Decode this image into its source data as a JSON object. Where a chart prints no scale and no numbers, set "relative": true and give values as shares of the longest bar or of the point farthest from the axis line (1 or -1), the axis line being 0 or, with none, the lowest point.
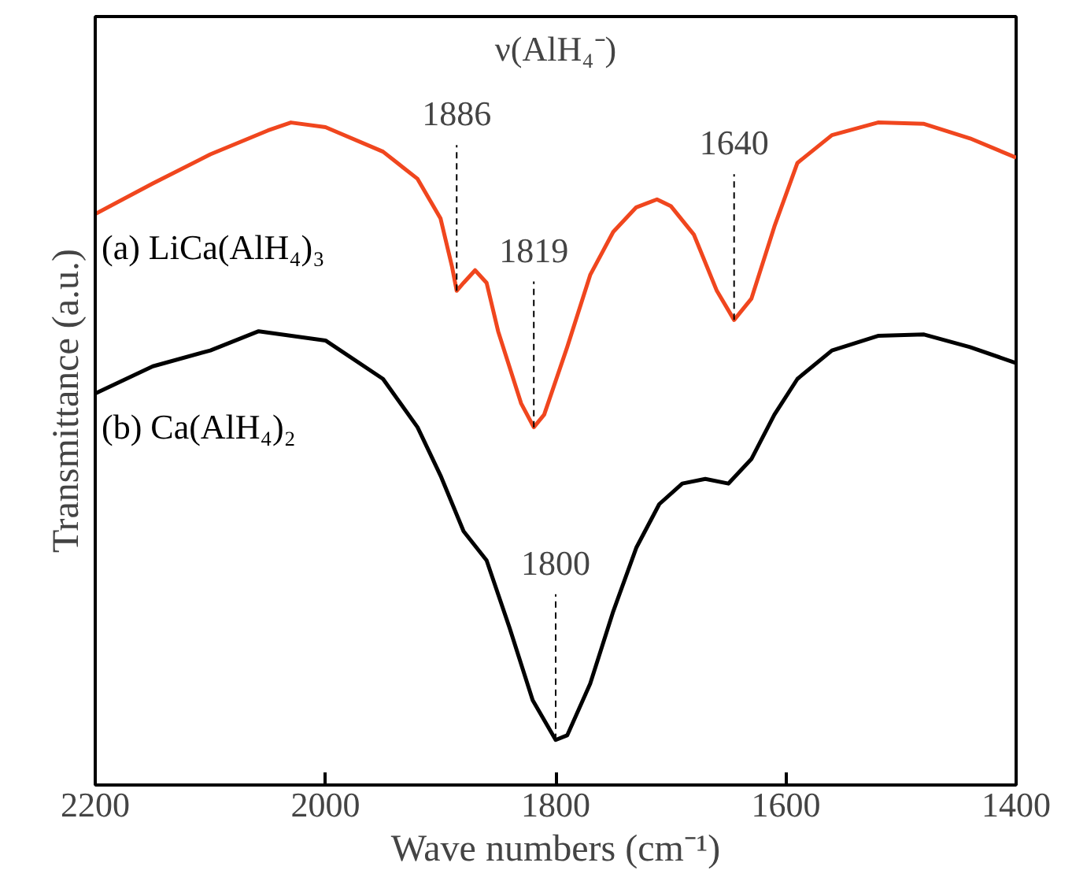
{
  "chart_data": {
    "type": "line",
    "relative": true,
    "xlabel": "Wave numbers (cm⁻¹)",
    "ylabel": "Transmittance (a.u.)",
    "xlim": [
      2200,
      1400
    ],
    "xticks": [
      2200,
      2000,
      1800,
      1600,
      1400
    ],
    "tick_labels": "x",
    "grid": false,
    "series": [
      {
        "name": "(a) LiCa(AlH₄)₃",
        "color": "#f0461e",
        "x": [
          2200,
          2150,
          2100,
          2050,
          2030,
          2000,
          1950,
          1920,
          1900,
          1890,
          1886,
          1880,
          1870,
          1860,
          1850,
          1830,
          1819,
          1810,
          1790,
          1770,
          1750,
          1730,
          1712,
          1700,
          1680,
          1660,
          1645,
          1630,
          1610,
          1590,
          1560,
          1520,
          1480,
          1440,
          1400
        ],
        "values": [
          0.862,
          0.908,
          0.952,
          0.988,
          1.0,
          0.993,
          0.956,
          0.915,
          0.855,
          0.782,
          0.746,
          0.758,
          0.777,
          0.758,
          0.685,
          0.576,
          0.54,
          0.559,
          0.661,
          0.77,
          0.835,
          0.872,
          0.884,
          0.874,
          0.831,
          0.746,
          0.702,
          0.734,
          0.843,
          0.939,
          0.981,
          1.0,
          0.998,
          0.976,
          0.947
        ]
      },
      {
        "name": "(b) Ca(AlH₄)₂",
        "color": "#000000",
        "x": [
          2200,
          2150,
          2100,
          2058,
          2000,
          1950,
          1920,
          1900,
          1880,
          1860,
          1840,
          1820,
          1800,
          1790,
          1770,
          1750,
          1730,
          1710,
          1690,
          1670,
          1650,
          1630,
          1610,
          1590,
          1560,
          1520,
          1480,
          1440,
          1400
        ],
        "values": [
          0.591,
          0.632,
          0.656,
          0.685,
          0.671,
          0.613,
          0.54,
          0.467,
          0.383,
          0.339,
          0.237,
          0.128,
          0.068,
          0.075,
          0.153,
          0.262,
          0.358,
          0.424,
          0.455,
          0.462,
          0.455,
          0.492,
          0.559,
          0.613,
          0.656,
          0.678,
          0.68,
          0.661,
          0.637
        ]
      }
    ],
    "annotations": [
      "ν(AlH₄⁻)",
      {
        "text": "1886",
        "x": 1886,
        "y": 0.746
      },
      {
        "text": "1819",
        "x": 1819,
        "y": 0.54
      },
      {
        "text": "1640",
        "x": 1645,
        "y": 0.702
      },
      {
        "text": "1800",
        "x": 1800,
        "y": 0.068
      }
    ]
  }
}
